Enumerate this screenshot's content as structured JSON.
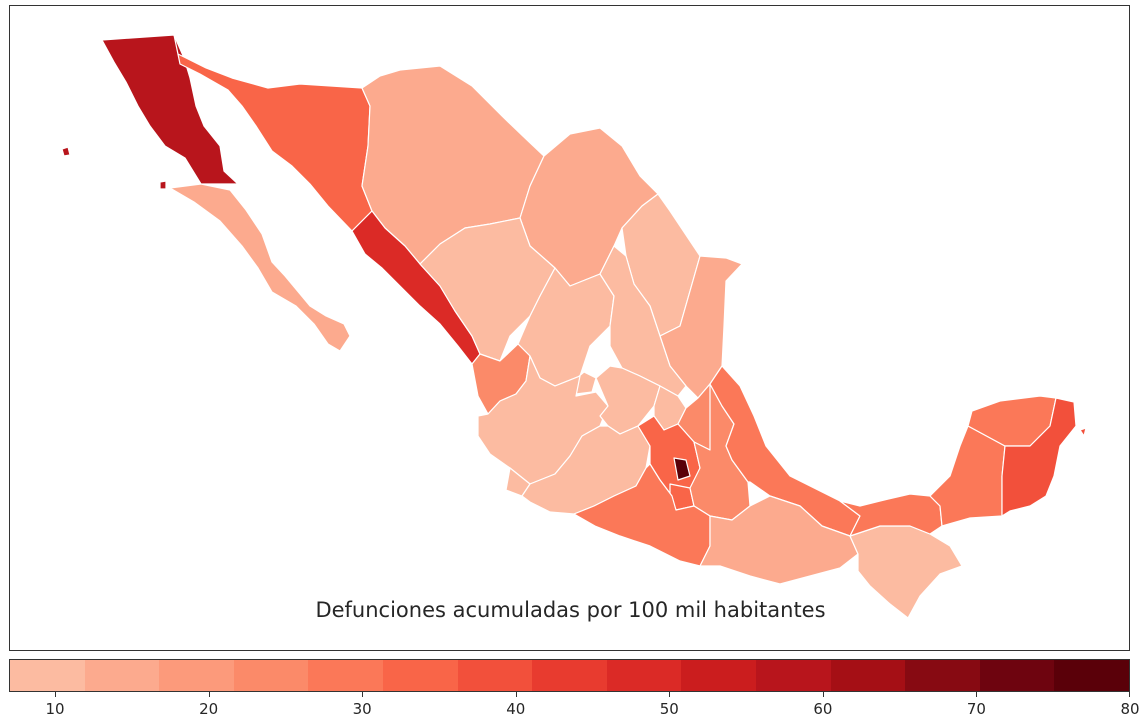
{
  "chart_data": {
    "type": "choropleth",
    "title": "Defunciones acumuladas por 100 mil habitantes",
    "colormap": "Reds",
    "colorbar": {
      "min": 7,
      "max": 80,
      "bins": 15,
      "ticks": [
        "10",
        "20",
        "30",
        "40",
        "50",
        "60",
        "70",
        "80"
      ],
      "colors": [
        "#fcbba1",
        "#fcaa8e",
        "#fc9a7b",
        "#fb8a69",
        "#fb7858",
        "#f96548",
        "#f2503b",
        "#e83b2f",
        "#db2a26",
        "#cb1d1e",
        "#b8151c",
        "#a50f15",
        "#870a12",
        "#6e040f",
        "#5a0009"
      ]
    },
    "regions": [
      {
        "name": "Baja California",
        "value": 60
      },
      {
        "name": "Baja California Sur",
        "value": 12
      },
      {
        "name": "Sonora",
        "value": 32
      },
      {
        "name": "Chihuahua",
        "value": 14
      },
      {
        "name": "Coahuila",
        "value": 14
      },
      {
        "name": "Nuevo León",
        "value": 9
      },
      {
        "name": "Tamaulipas",
        "value": 15
      },
      {
        "name": "Sinaloa",
        "value": 49
      },
      {
        "name": "Durango",
        "value": 10
      },
      {
        "name": "Zacatecas",
        "value": 10
      },
      {
        "name": "San Luis Potosí",
        "value": 10
      },
      {
        "name": "Nayarit",
        "value": 25
      },
      {
        "name": "Aguascalientes",
        "value": 10
      },
      {
        "name": "Jalisco",
        "value": 10
      },
      {
        "name": "Guanajuato",
        "value": 10
      },
      {
        "name": "Querétaro",
        "value": 10
      },
      {
        "name": "Hidalgo",
        "value": 25
      },
      {
        "name": "Colima",
        "value": 11
      },
      {
        "name": "Michoacán",
        "value": 10
      },
      {
        "name": "Estado de México",
        "value": 33
      },
      {
        "name": "Ciudad de México",
        "value": 80
      },
      {
        "name": "Morelos",
        "value": 36
      },
      {
        "name": "Tlaxcala",
        "value": 30
      },
      {
        "name": "Puebla",
        "value": 25
      },
      {
        "name": "Veracruz",
        "value": 27
      },
      {
        "name": "Guerrero",
        "value": 30
      },
      {
        "name": "Oaxaca",
        "value": 14
      },
      {
        "name": "Chiapas",
        "value": 9
      },
      {
        "name": "Tabasco",
        "value": 31
      },
      {
        "name": "Campeche",
        "value": 29
      },
      {
        "name": "Yucatán",
        "value": 27
      },
      {
        "name": "Quintana Roo",
        "value": 40
      }
    ]
  }
}
